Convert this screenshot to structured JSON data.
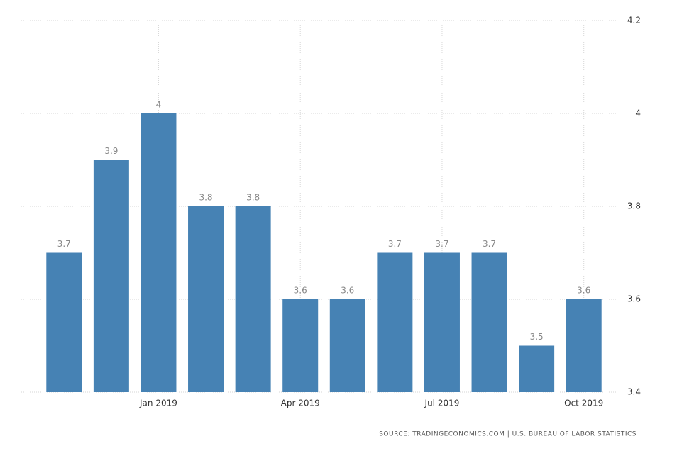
{
  "chart_data": {
    "type": "bar",
    "categories": [
      null,
      null,
      "Jan 2019",
      null,
      null,
      "Apr 2019",
      null,
      null,
      "Jul 2019",
      null,
      null,
      "Oct 2019"
    ],
    "values": [
      3.7,
      3.9,
      4,
      3.8,
      3.8,
      3.6,
      3.6,
      3.7,
      3.7,
      3.7,
      3.5,
      3.6
    ],
    "color": "#4682b4",
    "ylim": [
      3.4,
      4.2
    ],
    "yticks": [
      3.4,
      3.6,
      3.8,
      4,
      4.2
    ],
    "grid": true,
    "source": "SOURCE: TRADINGECONOMICS.COM | U.S. BUREAU OF LABOR STATISTICS"
  }
}
